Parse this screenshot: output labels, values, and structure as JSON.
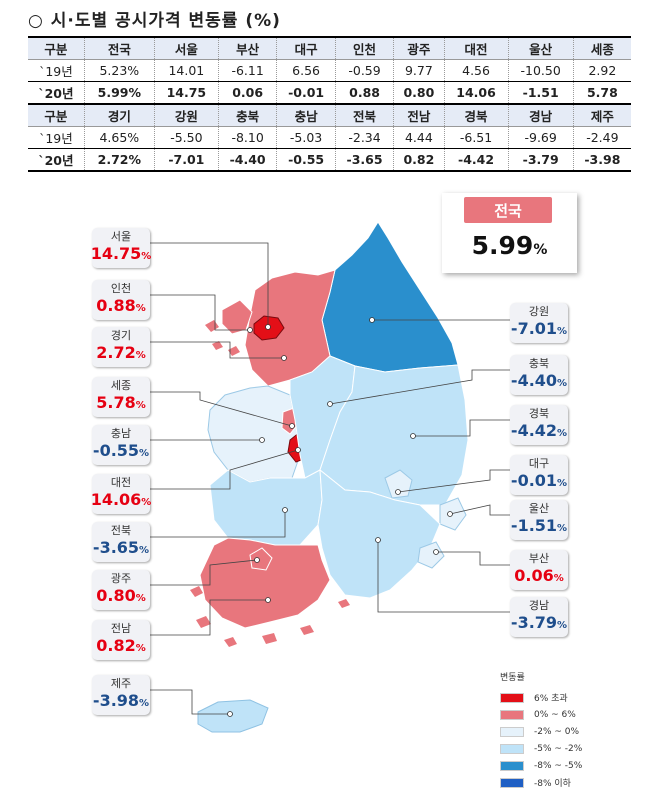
{
  "title": "○ 시·도별 공시가격 변동률 (%)",
  "table": {
    "blocks": [
      {
        "header": [
          "구분",
          "전국",
          "서울",
          "부산",
          "대구",
          "인천",
          "광주",
          "대전",
          "울산",
          "세종"
        ],
        "rows": [
          [
            "`19년",
            "5.23%",
            "14.01",
            "-6.11",
            "6.56",
            "-0.59",
            "9.77",
            "4.56",
            "-10.50",
            "2.92"
          ],
          [
            "`20년",
            "5.99%",
            "14.75",
            "0.06",
            "-0.01",
            "0.88",
            "0.80",
            "14.06",
            "-1.51",
            "5.78"
          ]
        ]
      },
      {
        "header": [
          "구분",
          "경기",
          "강원",
          "충북",
          "충남",
          "전북",
          "전남",
          "경북",
          "경남",
          "제주"
        ],
        "rows": [
          [
            "`19년",
            "4.65%",
            "-5.50",
            "-8.10",
            "-5.03",
            "-2.34",
            "4.44",
            "-6.51",
            "-9.69",
            "-2.49"
          ],
          [
            "`20년",
            "2.72%",
            "-7.01",
            "-4.40",
            "-0.55",
            "-3.65",
            "0.82",
            "-4.42",
            "-3.79",
            "-3.98"
          ]
        ]
      }
    ]
  },
  "national": {
    "label": "전국",
    "value": "5.99",
    "unit": "%"
  },
  "regions": [
    {
      "name": "서울",
      "value": "14.75",
      "unit": "%",
      "sign": "pos"
    },
    {
      "name": "인천",
      "value": "0.88",
      "unit": "%",
      "sign": "pos"
    },
    {
      "name": "경기",
      "value": "2.72",
      "unit": "%",
      "sign": "pos"
    },
    {
      "name": "세종",
      "value": "5.78",
      "unit": "%",
      "sign": "pos"
    },
    {
      "name": "충남",
      "value": "-0.55",
      "unit": "%",
      "sign": "neg"
    },
    {
      "name": "대전",
      "value": "14.06",
      "unit": "%",
      "sign": "pos"
    },
    {
      "name": "전북",
      "value": "-3.65",
      "unit": "%",
      "sign": "neg"
    },
    {
      "name": "광주",
      "value": "0.80",
      "unit": "%",
      "sign": "pos"
    },
    {
      "name": "전남",
      "value": "0.82",
      "unit": "%",
      "sign": "pos"
    },
    {
      "name": "제주",
      "value": "-3.98",
      "unit": "%",
      "sign": "neg"
    },
    {
      "name": "강원",
      "value": "-7.01",
      "unit": "%",
      "sign": "neg"
    },
    {
      "name": "충북",
      "value": "-4.40",
      "unit": "%",
      "sign": "neg"
    },
    {
      "name": "경북",
      "value": "-4.42",
      "unit": "%",
      "sign": "neg"
    },
    {
      "name": "대구",
      "value": "-0.01",
      "unit": "%",
      "sign": "neg"
    },
    {
      "name": "울산",
      "value": "-1.51",
      "unit": "%",
      "sign": "neg"
    },
    {
      "name": "부산",
      "value": "0.06",
      "unit": "%",
      "sign": "pos"
    },
    {
      "name": "경남",
      "value": "-3.79",
      "unit": "%",
      "sign": "neg"
    }
  ],
  "legend": {
    "title": "변동률",
    "items": [
      {
        "label": "6% 초과",
        "color": "#e30f17"
      },
      {
        "label": "0% ~ 6%",
        "color": "#e8767d"
      },
      {
        "label": "-2% ~ 0%",
        "color": "#e6f2fb"
      },
      {
        "label": "-5% ~ -2%",
        "color": "#bfe3f8"
      },
      {
        "label": "-8% ~ -5%",
        "color": "#2a8fcd"
      },
      {
        "label": "-8% 이하",
        "color": "#1f5fc4"
      }
    ]
  },
  "colors": {
    "positive_text": "#e60012",
    "negative_text": "#1f4e8c",
    "table_header_bg": "#e5ebf6",
    "national_ribbon": "#e8767d"
  }
}
